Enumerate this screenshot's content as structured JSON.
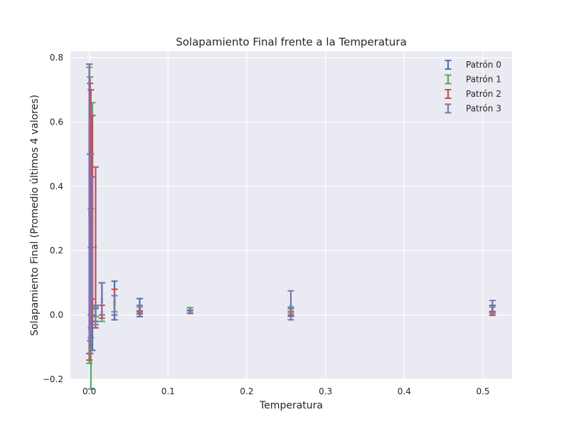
{
  "chart_data": {
    "type": "scatter",
    "title": "Solapamiento Final frente a la Temperatura",
    "xlabel": "Temperatura",
    "ylabel": "Solapamiento Final (Promedio últimos 4 valores)",
    "xlim": [
      -0.024,
      0.537
    ],
    "ylim": [
      -0.2,
      0.82
    ],
    "xticks": [
      "0.0",
      "0.1",
      "0.2",
      "0.3",
      "0.4",
      "0.5"
    ],
    "yticks": [
      "−0.2",
      "0.0",
      "0.2",
      "0.4",
      "0.6",
      "0.8"
    ],
    "xtick_values": [
      0.0,
      0.1,
      0.2,
      0.3,
      0.4,
      0.5
    ],
    "ytick_values": [
      -0.2,
      0.0,
      0.2,
      0.4,
      0.6,
      0.8
    ],
    "grid": true,
    "legend_position": "top-right",
    "error_bars": true,
    "background": "#eaeaf2",
    "series": [
      {
        "name": "Patrón 0",
        "color": "#4c72b0",
        "points": [
          {
            "x": 0.0,
            "y": 0.33,
            "err": 0.45
          },
          {
            "x": 0.001,
            "y": 0.19,
            "err": 0.31
          },
          {
            "x": 0.002,
            "y": 0.25,
            "err": 0.25
          },
          {
            "x": 0.004,
            "y": 0.16,
            "err": 0.27
          },
          {
            "x": 0.008,
            "y": 0.0,
            "err": 0.02
          },
          {
            "x": 0.016,
            "y": 0.05,
            "err": 0.05
          },
          {
            "x": 0.032,
            "y": 0.045,
            "err": 0.06
          },
          {
            "x": 0.064,
            "y": 0.023,
            "err": 0.028
          },
          {
            "x": 0.128,
            "y": 0.01,
            "err": 0.005
          },
          {
            "x": 0.256,
            "y": 0.008,
            "err": 0.012
          },
          {
            "x": 0.512,
            "y": 0.02,
            "err": 0.01
          }
        ]
      },
      {
        "name": "Patrón 1",
        "color": "#55a868",
        "points": [
          {
            "x": 0.0,
            "y": 0.31,
            "err": 0.46
          },
          {
            "x": 0.001,
            "y": 0.31,
            "err": 0.43
          },
          {
            "x": 0.002,
            "y": 0.05,
            "err": 0.28
          },
          {
            "x": 0.004,
            "y": 0.33,
            "err": 0.33
          },
          {
            "x": 0.008,
            "y": 0.01,
            "err": 0.015
          },
          {
            "x": 0.016,
            "y": 0.04,
            "err": 0.06
          },
          {
            "x": 0.032,
            "y": 0.035,
            "err": 0.025
          },
          {
            "x": 0.064,
            "y": 0.015,
            "err": 0.01
          },
          {
            "x": 0.128,
            "y": 0.018,
            "err": 0.005
          },
          {
            "x": 0.256,
            "y": 0.015,
            "err": 0.01
          },
          {
            "x": 0.512,
            "y": 0.015,
            "err": 0.01
          }
        ]
      },
      {
        "name": "Patrón 2",
        "color": "#c44e52",
        "points": [
          {
            "x": 0.0,
            "y": 0.32,
            "err": 0.46
          },
          {
            "x": 0.001,
            "y": 0.3,
            "err": 0.42
          },
          {
            "x": 0.002,
            "y": 0.33,
            "err": 0.37
          },
          {
            "x": 0.004,
            "y": 0.3,
            "err": 0.32
          },
          {
            "x": 0.008,
            "y": 0.21,
            "err": 0.25
          },
          {
            "x": 0.016,
            "y": 0.01,
            "err": 0.02
          },
          {
            "x": 0.032,
            "y": 0.04,
            "err": 0.04
          },
          {
            "x": 0.064,
            "y": 0.008,
            "err": 0.005
          },
          {
            "x": 0.128,
            "y": 0.01,
            "err": 0.004
          },
          {
            "x": 0.256,
            "y": 0.005,
            "err": 0.006
          },
          {
            "x": 0.512,
            "y": 0.005,
            "err": 0.006
          }
        ]
      },
      {
        "name": "Patrón 3",
        "color": "#8172b2",
        "points": [
          {
            "x": 0.0,
            "y": 0.33,
            "err": 0.45
          },
          {
            "x": 0.001,
            "y": 0.21,
            "err": 0.29
          },
          {
            "x": 0.002,
            "y": 0.07,
            "err": 0.14
          },
          {
            "x": 0.004,
            "y": 0.24,
            "err": 0.19
          },
          {
            "x": 0.008,
            "y": 0.0,
            "err": 0.03
          },
          {
            "x": 0.016,
            "y": 0.05,
            "err": 0.05
          },
          {
            "x": 0.032,
            "y": 0.03,
            "err": 0.03
          },
          {
            "x": 0.064,
            "y": 0.02,
            "err": 0.01
          },
          {
            "x": 0.128,
            "y": 0.01,
            "err": 0.005
          },
          {
            "x": 0.256,
            "y": 0.03,
            "err": 0.045
          },
          {
            "x": 0.512,
            "y": 0.025,
            "err": 0.02
          }
        ]
      }
    ]
  }
}
